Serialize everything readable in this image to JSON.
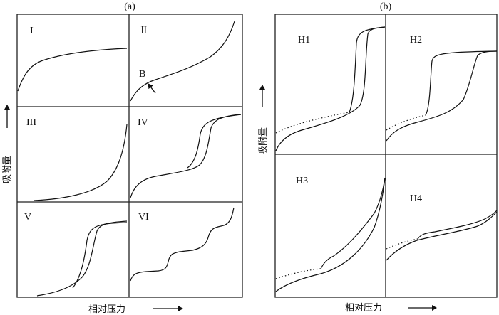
{
  "panels": {
    "a": {
      "caption": "(a)",
      "ylabel": "吸附量",
      "xlabel": "相对压力",
      "types": [
        "I",
        "Ⅱ",
        "III",
        "IV",
        "V",
        "VI"
      ],
      "point_label": "B"
    },
    "b": {
      "caption": "(b)",
      "ylabel": "吸附量",
      "xlabel": "相对压力",
      "types": [
        "H1",
        "H2",
        "H3",
        "H4"
      ]
    }
  }
}
